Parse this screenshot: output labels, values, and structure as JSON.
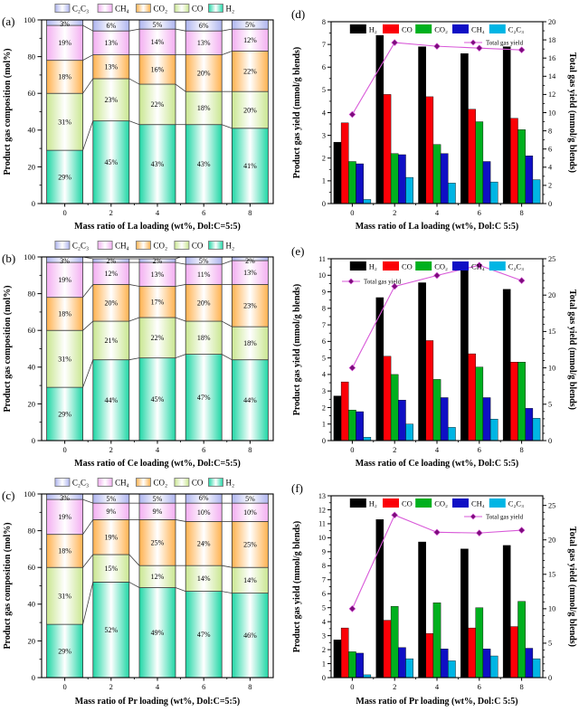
{
  "page": {
    "background": "#ffffff"
  },
  "colors": {
    "frame": "#000000",
    "segment_edge": "#3c3c3c",
    "stacked": {
      "H2": "#1fd6a5",
      "CO": "#c9e690",
      "CO2": "#ffb14e",
      "CH4": "#f3aef1",
      "C2C3": "#aeb4ef"
    },
    "grouped": {
      "H2": "#000000",
      "CO": "#fb0007",
      "CO2": "#00b01e",
      "CH4": "#0f0fc5",
      "C2C3": "#00b5e4"
    },
    "total_line": "#d858d8",
    "total_marker": "#7c0d7c",
    "total_legend_text": "#e236e2"
  },
  "chart_data": [
    {
      "id": "a",
      "panel_label": "(a)",
      "type": "stacked-bar",
      "xlabel": "Mass ratio of La loading (wt%, Dol:C=5:5)",
      "ylabel": "Product gas composition (mol%)",
      "ylim": [
        0,
        100
      ],
      "yticks": [
        0,
        20,
        40,
        60,
        80,
        100
      ],
      "y_minor_step": 10,
      "categories": [
        "0",
        "2",
        "4",
        "6",
        "8"
      ],
      "legend_order": [
        "C2C3",
        "CH4",
        "CO2",
        "CO",
        "H2"
      ],
      "series": [
        {
          "name": "H2",
          "label": "H₂",
          "values": [
            29,
            45,
            43,
            43,
            41
          ]
        },
        {
          "name": "CO",
          "label": "CO",
          "values": [
            31,
            23,
            22,
            18,
            20
          ]
        },
        {
          "name": "CO2",
          "label": "CO₂",
          "values": [
            18,
            13,
            16,
            20,
            22
          ]
        },
        {
          "name": "CH4",
          "label": "CH₄",
          "values": [
            19,
            13,
            14,
            13,
            12
          ]
        },
        {
          "name": "C2C3",
          "label": "C₂C₃",
          "values": [
            3,
            6,
            5,
            6,
            5
          ]
        }
      ]
    },
    {
      "id": "d",
      "panel_label": "(d)",
      "type": "grouped-bar-line",
      "xlabel": "Mass ratio of La loading (wt%, Dol:C 5:5)",
      "ylabel_left": "Product gas yield (mmol/g blends)",
      "ylabel_right": "Total gas yield (mmol/g blends)",
      "ylim_left": [
        0,
        8
      ],
      "yticks_left": [
        0,
        1,
        2,
        3,
        4,
        5,
        6,
        7,
        8
      ],
      "ylim_right": [
        0,
        20
      ],
      "yticks_right": [
        0,
        2,
        4,
        6,
        8,
        10,
        12,
        14,
        16,
        18,
        20
      ],
      "right_minor_step": 1,
      "categories": [
        "0",
        "2",
        "4",
        "6",
        "8"
      ],
      "series": [
        {
          "name": "H2",
          "label": "H₂",
          "values": [
            2.7,
            7.4,
            6.9,
            6.6,
            6.9
          ]
        },
        {
          "name": "CO",
          "label": "CO",
          "values": [
            3.55,
            4.8,
            4.7,
            4.15,
            3.75
          ]
        },
        {
          "name": "CO2",
          "label": "CO₂",
          "values": [
            1.85,
            2.2,
            2.6,
            3.6,
            3.25
          ]
        },
        {
          "name": "CH4",
          "label": "CH₄",
          "values": [
            1.75,
            2.15,
            2.2,
            1.85,
            2.1
          ]
        },
        {
          "name": "C2C3",
          "label": "C₂C₃",
          "values": [
            0.18,
            1.15,
            0.9,
            0.95,
            1.05
          ]
        }
      ],
      "line": {
        "label": "Total gas yield",
        "values": [
          9.8,
          17.7,
          17.3,
          17.1,
          16.9
        ],
        "legend_side": "right"
      }
    },
    {
      "id": "b",
      "panel_label": "(b)",
      "type": "stacked-bar",
      "xlabel": "Mass ratio of Ce loading (wt%, Dol:C=5:5)",
      "ylabel": "Product gas composition (mol%)",
      "ylim": [
        0,
        100
      ],
      "yticks": [
        0,
        20,
        40,
        60,
        80,
        100
      ],
      "y_minor_step": 10,
      "categories": [
        "0",
        "2",
        "4",
        "6",
        "8"
      ],
      "legend_order": [
        "C2C3",
        "CH4",
        "CO2",
        "CO",
        "H2"
      ],
      "series": [
        {
          "name": "H2",
          "label": "H₂",
          "values": [
            29,
            44,
            45,
            47,
            44
          ]
        },
        {
          "name": "CO",
          "label": "CO",
          "values": [
            31,
            21,
            22,
            18,
            18
          ]
        },
        {
          "name": "CO2",
          "label": "CO₂",
          "values": [
            18,
            20,
            17,
            20,
            23
          ]
        },
        {
          "name": "CH4",
          "label": "CH₄",
          "values": [
            19,
            12,
            13,
            11,
            13
          ]
        },
        {
          "name": "C2C3",
          "label": "C₂C₃",
          "values": [
            3,
            2,
            2,
            5,
            2
          ]
        }
      ]
    },
    {
      "id": "e",
      "panel_label": "(e)",
      "type": "grouped-bar-line",
      "xlabel": "Mass ratio of Ce loading (wt%, Dol:C 5:5)",
      "ylabel_left": "Product gas yield (mmol/g blends)",
      "ylabel_right": "Total gas yield (mmol/g blends)",
      "ylim_left": [
        0,
        11
      ],
      "yticks_left": [
        0,
        1,
        2,
        3,
        4,
        5,
        6,
        7,
        8,
        9,
        10,
        11
      ],
      "ylim_right": [
        0,
        25
      ],
      "yticks_right": [
        0,
        5,
        10,
        15,
        20,
        25
      ],
      "right_minor_step": 1,
      "categories": [
        "0",
        "2",
        "4",
        "6",
        "8"
      ],
      "series": [
        {
          "name": "H2",
          "label": "H₂",
          "values": [
            2.7,
            8.65,
            9.55,
            10.5,
            9.15
          ]
        },
        {
          "name": "CO",
          "label": "CO",
          "values": [
            3.55,
            5.1,
            6.05,
            5.25,
            4.75
          ]
        },
        {
          "name": "CO2",
          "label": "CO₂",
          "values": [
            1.85,
            4.0,
            3.7,
            4.45,
            4.75
          ]
        },
        {
          "name": "CH4",
          "label": "CH₄",
          "values": [
            1.75,
            2.45,
            2.6,
            2.6,
            1.95
          ]
        },
        {
          "name": "C2C3",
          "label": "C₂C₃",
          "values": [
            0.2,
            1.0,
            0.8,
            1.3,
            1.35
          ]
        }
      ],
      "line": {
        "label": "Total gas yield",
        "values": [
          10.0,
          21.2,
          22.7,
          24.1,
          22.0
        ],
        "legend_side": "left"
      }
    },
    {
      "id": "c",
      "panel_label": "(c)",
      "type": "stacked-bar",
      "xlabel": "Mass ratio of Pr loading (wt%, Dol:C=5:5)",
      "ylabel": "Product gas composition (mol%)",
      "ylim": [
        0,
        100
      ],
      "yticks": [
        0,
        20,
        40,
        60,
        80,
        100
      ],
      "y_minor_step": 10,
      "categories": [
        "0",
        "2",
        "4",
        "6",
        "8"
      ],
      "legend_order": [
        "C2C3",
        "CH4",
        "CO2",
        "CO",
        "H2"
      ],
      "series": [
        {
          "name": "H2",
          "label": "H₂",
          "values": [
            29,
            52,
            49,
            47,
            46
          ]
        },
        {
          "name": "CO",
          "label": "CO",
          "values": [
            31,
            15,
            12,
            14,
            14
          ]
        },
        {
          "name": "CO2",
          "label": "CO₂",
          "values": [
            18,
            19,
            25,
            24,
            25
          ]
        },
        {
          "name": "CH4",
          "label": "CH₄",
          "values": [
            19,
            9,
            9,
            10,
            10
          ]
        },
        {
          "name": "C2C3",
          "label": "C₂C₃",
          "values": [
            3,
            5,
            5,
            6,
            5
          ]
        }
      ]
    },
    {
      "id": "f",
      "panel_label": "(f)",
      "type": "grouped-bar-line",
      "xlabel": "Mass ratio of Pr loading (wt%, Dol:C 5:5)",
      "ylabel_left": "Product gas yield (mmol/g blends)",
      "ylabel_right": "Total gas yield (mmol/g blends)",
      "ylim_left": [
        0,
        13
      ],
      "yticks_left": [
        0,
        1,
        2,
        3,
        4,
        5,
        6,
        7,
        8,
        9,
        10,
        11,
        12,
        13
      ],
      "ylim_right": [
        0,
        26.4
      ],
      "yticks_right": [
        0,
        5,
        10,
        15,
        20,
        25
      ],
      "right_minor_step": 1,
      "categories": [
        "0",
        "2",
        "4",
        "6",
        "8"
      ],
      "series": [
        {
          "name": "H2",
          "label": "H₂",
          "values": [
            2.7,
            11.3,
            9.7,
            9.2,
            9.45
          ]
        },
        {
          "name": "CO",
          "label": "CO",
          "values": [
            3.55,
            4.1,
            3.15,
            3.55,
            3.65
          ]
        },
        {
          "name": "CO2",
          "label": "CO₂",
          "values": [
            1.85,
            5.1,
            5.35,
            5.0,
            5.45
          ]
        },
        {
          "name": "CH4",
          "label": "CH₄",
          "values": [
            1.75,
            2.15,
            2.05,
            2.05,
            2.1
          ]
        },
        {
          "name": "C2C3",
          "label": "C₂C₃",
          "values": [
            0.2,
            1.35,
            1.2,
            1.55,
            1.35
          ]
        }
      ],
      "line": {
        "label": "Total gas yield",
        "values": [
          10.0,
          23.6,
          21.1,
          21.0,
          21.4
        ],
        "legend_side": "right"
      }
    }
  ]
}
